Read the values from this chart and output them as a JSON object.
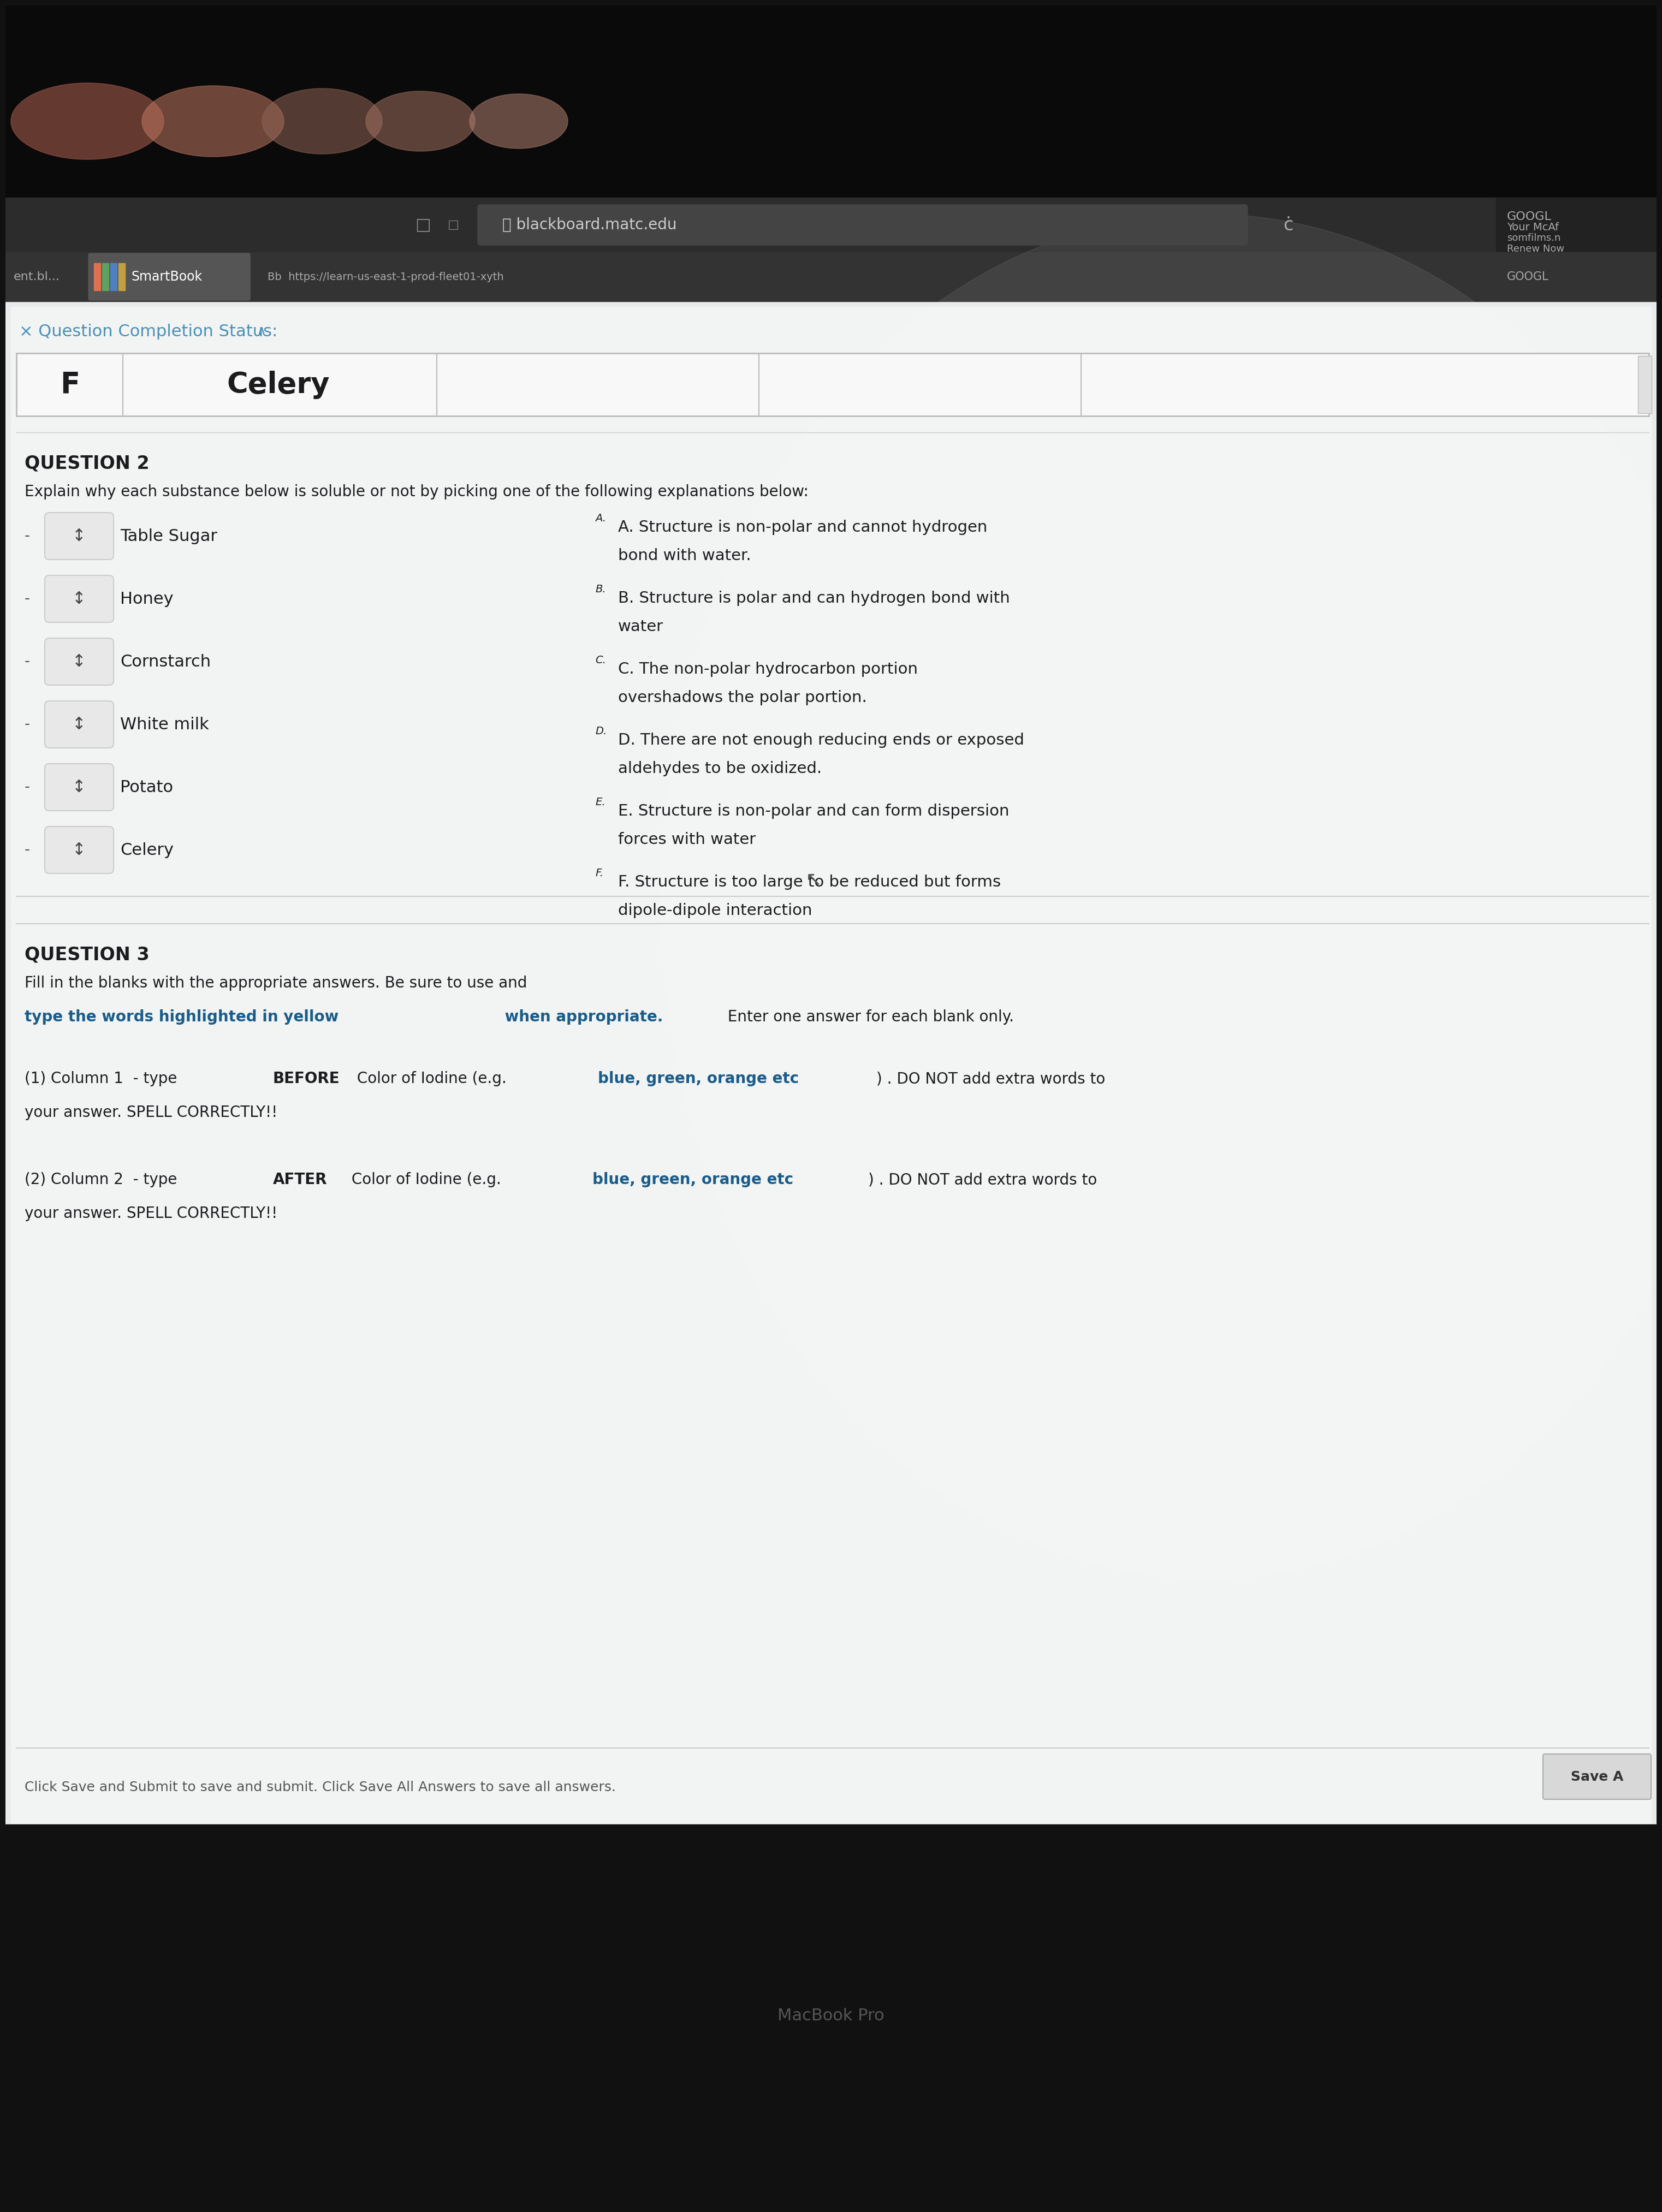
{
  "browser_url": "blackboard.matc.edu",
  "tab1": "SmartBook",
  "tab2": "Bb  https://learn-us-east-1-prod-fleet01-xythos.content.bl...",
  "completion_label": "× Question Completion Status:",
  "table_col1": "F",
  "table_col2": "Celery",
  "question2_label": "QUESTION 2",
  "question2_intro": "Explain why each substance below is soluble or not by picking one of the following explanations below:",
  "substances": [
    "Table Sugar",
    "Honey",
    "Cornstarch",
    "White milk",
    "Potato",
    "Celery"
  ],
  "explanations": [
    [
      "A",
      "A. Structure is non-polar and cannot hydrogen",
      "bond with water."
    ],
    [
      "B",
      "B. Structure is polar and can hydrogen bond with",
      "water"
    ],
    [
      "C",
      "C. The non-polar hydrocarbon portion",
      "overshadows the polar portion."
    ],
    [
      "D",
      "D. There are not enough reducing ends or exposed",
      "aldehydes to be oxidized."
    ],
    [
      "E",
      "E. Structure is non-polar and can form dispersion",
      "forces with water"
    ],
    [
      "F",
      "F. Structure is too large to be reduced but forms",
      "dipole-dipole interaction"
    ]
  ],
  "question3_label": "QUESTION 3",
  "footer": "Click Save and Submit to save and submit. Click Save All Answers to save all answers.",
  "save_btn": "Save A",
  "text_dark": "#1c1c1e",
  "text_blue": "#4a90b8",
  "text_navy": "#1a5276",
  "bg_content": "#eef0f0",
  "bg_white": "#ffffff"
}
